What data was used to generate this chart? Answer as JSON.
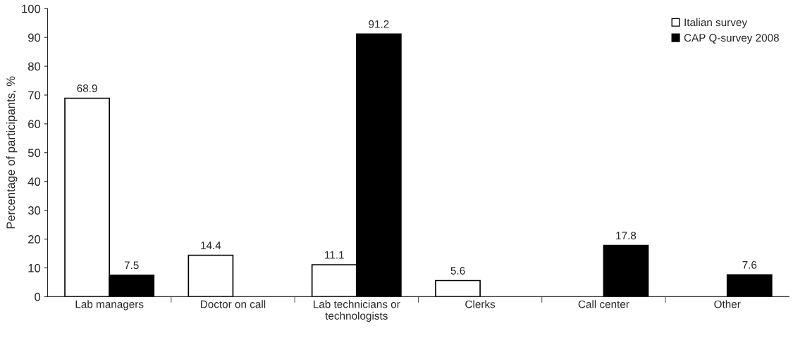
{
  "chart_data": {
    "type": "bar",
    "ylabel": "Percentage of participants, %",
    "categories": [
      "Lab managers",
      "Doctor on call",
      "Lab technicians or\ntechnologists",
      "Clerks",
      "Call center",
      "Other"
    ],
    "series": [
      {
        "name": "Italian survey",
        "color": "#ffffff",
        "values": [
          68.9,
          14.4,
          11.1,
          5.6,
          null,
          null
        ]
      },
      {
        "name": "CAP Q-survey 2008",
        "color": "#000000",
        "values": [
          7.5,
          null,
          91.2,
          null,
          17.8,
          7.6
        ]
      }
    ],
    "ylim": [
      0,
      100
    ],
    "yticks": [
      0,
      10,
      20,
      30,
      40,
      50,
      60,
      70,
      80,
      90,
      100
    ],
    "data_labels": true,
    "legend": "top right",
    "grid": false
  }
}
